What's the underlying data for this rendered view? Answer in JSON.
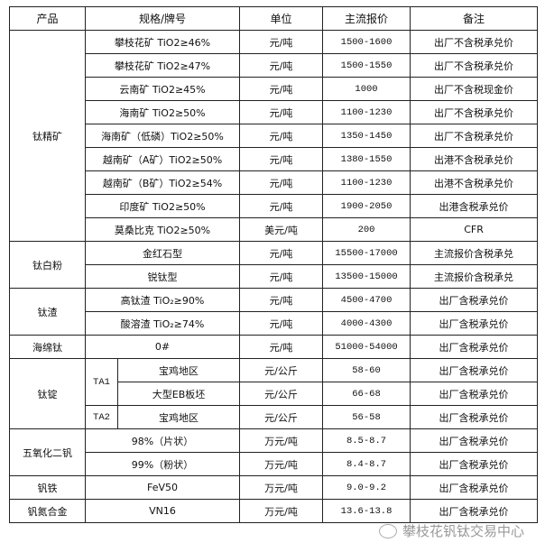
{
  "headers": [
    "产品",
    "规格/牌号",
    "单位",
    "主流报价",
    "备注"
  ],
  "groups": {
    "titanium_concentrate": {
      "product": "钛精矿",
      "rows": [
        {
          "spec": "攀枝花矿 TiO2≥46%",
          "unit": "元/吨",
          "price": "1500-1600",
          "note": "出厂不含税承兑价"
        },
        {
          "spec": "攀枝花矿 TiO2≥47%",
          "unit": "元/吨",
          "price": "1500-1550",
          "note": "出厂不含税承兑价"
        },
        {
          "spec": "云南矿 TiO2≥45%",
          "unit": "元/吨",
          "price": "1000",
          "note": "出厂不含税现金价"
        },
        {
          "spec": "海南矿 TiO2≥50%",
          "unit": "元/吨",
          "price": "1100-1230",
          "note": "出厂不含税承兑价"
        },
        {
          "spec": "海南矿（低磷）TiO2≥50%",
          "unit": "元/吨",
          "price": "1350-1450",
          "note": "出厂不含税承兑价"
        },
        {
          "spec": "越南矿（A矿）TiO2≥50%",
          "unit": "元/吨",
          "price": "1380-1550",
          "note": "出港不含税承兑价"
        },
        {
          "spec": "越南矿（B矿）TiO2≥54%",
          "unit": "元/吨",
          "price": "1100-1230",
          "note": "出港不含税承兑价"
        },
        {
          "spec": "印度矿 TiO2≥50%",
          "unit": "元/吨",
          "price": "1900-2050",
          "note": "出港含税承兑价"
        },
        {
          "spec": "莫桑比克 TiO2≥50%",
          "unit": "美元/吨",
          "price": "200",
          "note": "CFR"
        }
      ]
    },
    "titanium_dioxide": {
      "product": "钛白粉",
      "rows": [
        {
          "spec": "金红石型",
          "unit": "元/吨",
          "price": "15500-17000",
          "note": "主流报价含税承兑"
        },
        {
          "spec": "锐钛型",
          "unit": "元/吨",
          "price": "13500-15000",
          "note": "主流报价含税承兑"
        }
      ]
    },
    "titanium_slag": {
      "product": "钛渣",
      "rows": [
        {
          "spec": "高钛渣 TiO₂≥90%",
          "unit": "元/吨",
          "price": "4500-4700",
          "note": "出厂含税承兑价"
        },
        {
          "spec": "酸溶渣 TiO₂≥74%",
          "unit": "元/吨",
          "price": "4000-4300",
          "note": "出厂含税承兑价"
        }
      ]
    },
    "sponge_titanium": {
      "product": "海绵钛",
      "rows": [
        {
          "spec": "0#",
          "unit": "元/吨",
          "price": "51000-54000",
          "note": "出厂含税承兑价"
        }
      ]
    },
    "titanium_ingot": {
      "product": "钛锭",
      "grade1": "TA1",
      "grade2": "TA2",
      "rows": [
        {
          "spec": "宝鸡地区",
          "unit": "元/公斤",
          "price": "58-60",
          "note": "出厂含税承兑价"
        },
        {
          "spec": "大型EB板坯",
          "unit": "元/公斤",
          "price": "66-68",
          "note": "出厂含税承兑价"
        },
        {
          "spec": "宝鸡地区",
          "unit": "元/公斤",
          "price": "56-58",
          "note": "出厂含税承兑价"
        }
      ]
    },
    "vanadium_pentoxide": {
      "product": "五氧化二钒",
      "rows": [
        {
          "spec": "98%（片状）",
          "unit": "万元/吨",
          "price": "8.5-8.7",
          "note": "出厂含税承兑价"
        },
        {
          "spec": "99%（粉状）",
          "unit": "万元/吨",
          "price": "8.4-8.7",
          "note": "出厂含税承兑价"
        }
      ]
    },
    "ferrovanadium": {
      "product": "钒铁",
      "rows": [
        {
          "spec": "FeV50",
          "unit": "万元/吨",
          "price": "9.0-9.2",
          "note": "出厂含税承兑价"
        }
      ]
    },
    "vanadium_nitrogen": {
      "product": "钒氮合金",
      "rows": [
        {
          "spec": "VN16",
          "unit": "万元/吨",
          "price": "13.6-13.8",
          "note": "出厂含税承兑价"
        }
      ]
    }
  },
  "watermark": "攀枝花钒钛交易中心"
}
